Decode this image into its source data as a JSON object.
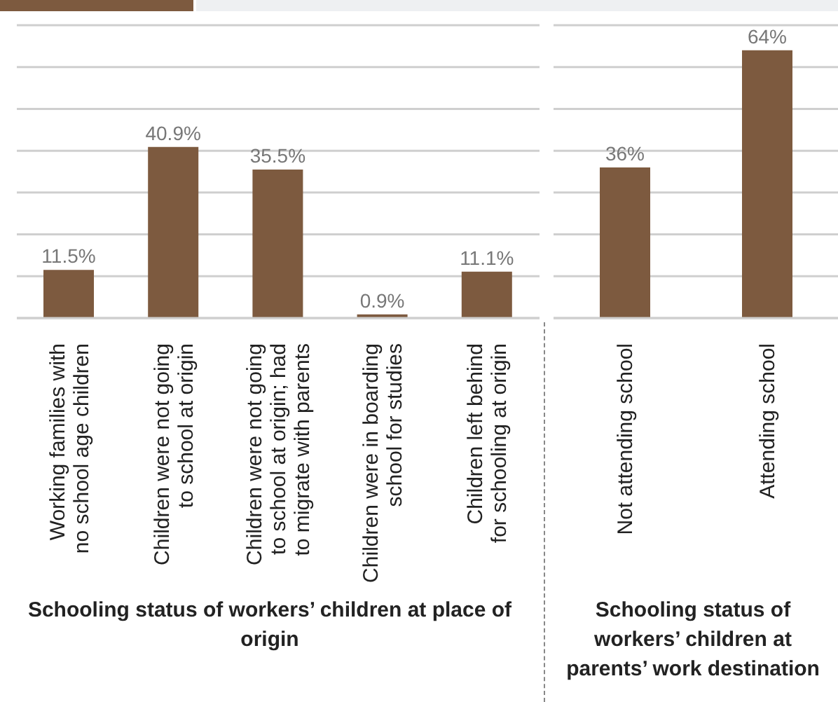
{
  "chart_data": [
    {
      "type": "bar",
      "xlabel": "Schooling status of workers’ children at place of origin",
      "categories": [
        "Working families with no school age children",
        "Children were not going to school at origin",
        "Children were not going to school at origin; had to migrate with parents",
        "Children were in boarding school for studies",
        "Children left behind for schooling at origin"
      ],
      "values": [
        11.5,
        40.9,
        35.5,
        0.9,
        11.1
      ],
      "color": "#7d5a3f",
      "value_labels": [
        "11.5%",
        "40.9%",
        "35.5%",
        "0.9%",
        "11.1%"
      ],
      "ylim": [
        0,
        70
      ],
      "yticks": [
        {
          "value": 0,
          "label": null
        },
        {
          "value": 10,
          "label": null
        },
        {
          "value": 20,
          "label": null
        },
        {
          "value": 30,
          "label": null
        },
        {
          "value": 40,
          "label": null
        },
        {
          "value": 50,
          "label": null
        },
        {
          "value": 60,
          "label": null
        },
        {
          "value": 70,
          "label": null
        }
      ],
      "grid": "y",
      "tick_labels": "x",
      "legend": false
    },
    {
      "type": "bar",
      "xlabel": "Schooling status of workers’ children at parents’ work destination",
      "categories": [
        "Not attending school",
        "Attending school"
      ],
      "values": [
        36,
        64
      ],
      "color": "#7d5a3f",
      "value_labels": [
        "36%",
        "64%"
      ],
      "ylim": [
        0,
        70
      ],
      "yticks": [
        {
          "value": 0,
          "label": null
        },
        {
          "value": 10,
          "label": null
        },
        {
          "value": 20,
          "label": null
        },
        {
          "value": 30,
          "label": null
        },
        {
          "value": 40,
          "label": null
        },
        {
          "value": 50,
          "label": null
        },
        {
          "value": 60,
          "label": null
        },
        {
          "value": 70,
          "label": null
        }
      ],
      "grid": "y",
      "tick_labels": "x",
      "legend": false
    }
  ]
}
